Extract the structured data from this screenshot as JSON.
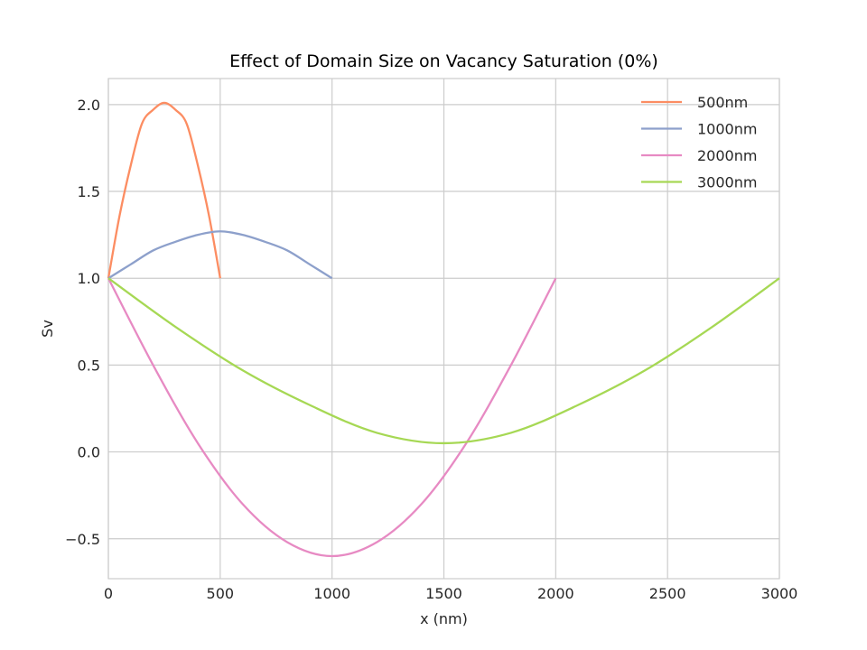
{
  "chart_data": {
    "type": "line",
    "title": "Effect of Domain Size on Vacancy Saturation (0%)",
    "xlabel": "x (nm)",
    "ylabel": "Sv",
    "xlim": [
      0,
      3000
    ],
    "ylim": [
      -0.73,
      2.15
    ],
    "xticks": [
      0,
      500,
      1000,
      1500,
      2000,
      2500,
      3000
    ],
    "xtick_labels": [
      "0",
      "500",
      "1000",
      "1500",
      "2000",
      "2500",
      "3000"
    ],
    "yticks": [
      -0.5,
      0.0,
      0.5,
      1.0,
      1.5,
      2.0
    ],
    "ytick_labels": [
      "−0.5",
      "0.0",
      "0.5",
      "1.0",
      "1.5",
      "2.0"
    ],
    "grid": true,
    "legend_position": "top-right",
    "series": [
      {
        "name": "500nm",
        "color": "#fc8d62",
        "x": [
          0,
          50,
          100,
          150,
          200,
          250,
          300,
          350,
          400,
          450,
          500
        ],
        "y": [
          1.0,
          1.36,
          1.65,
          1.89,
          1.97,
          2.01,
          1.97,
          1.89,
          1.65,
          1.36,
          1.0
        ]
      },
      {
        "name": "1000nm",
        "color": "#8da0cb",
        "x": [
          0,
          100,
          200,
          300,
          400,
          500,
          600,
          700,
          800,
          900,
          1000
        ],
        "y": [
          1.0,
          1.08,
          1.16,
          1.21,
          1.25,
          1.27,
          1.25,
          1.21,
          1.16,
          1.08,
          1.0
        ]
      },
      {
        "name": "2000nm",
        "color": "#e78ac3",
        "x": [
          0,
          200,
          400,
          600,
          800,
          1000,
          1200,
          1400,
          1600,
          1800,
          2000
        ],
        "y": [
          1.0,
          0.5,
          0.05,
          -0.3,
          -0.52,
          -0.6,
          -0.52,
          -0.3,
          0.05,
          0.5,
          1.0
        ]
      },
      {
        "name": "3000nm",
        "color": "#a6d854",
        "x": [
          0,
          300,
          600,
          900,
          1200,
          1500,
          1800,
          2100,
          2400,
          2700,
          3000
        ],
        "y": [
          1.0,
          0.72,
          0.47,
          0.27,
          0.11,
          0.05,
          0.11,
          0.27,
          0.47,
          0.72,
          1.0
        ]
      }
    ]
  }
}
